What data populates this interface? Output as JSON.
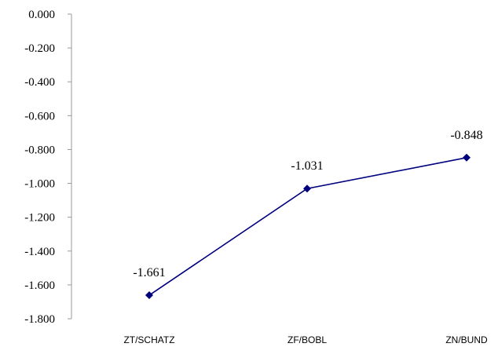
{
  "chart_data": {
    "type": "line",
    "title": "",
    "xlabel": "",
    "ylabel": "",
    "categories": [
      "ZT/SCHATZ",
      "ZF/BOBL",
      "ZN/BUND"
    ],
    "series": [
      {
        "values": [
          -1.661,
          -1.031,
          -0.848
        ],
        "labels": [
          "-1.661",
          "-1.031",
          "-0.848"
        ],
        "color": "#00007f",
        "marker": "diamond"
      }
    ],
    "ylim": [
      -1.8,
      0.0
    ],
    "yticks": [
      0.0,
      -0.2,
      -0.4,
      -0.6,
      -0.8,
      -1.0,
      -1.2,
      -1.4,
      -1.6,
      -1.8
    ],
    "ytick_labels": [
      "0.000",
      "-0.200",
      "-0.400",
      "-0.600",
      "-0.800",
      "-1.000",
      "-1.200",
      "-1.400",
      "-1.600",
      "-1.800"
    ],
    "grid": false,
    "legend": "none"
  }
}
